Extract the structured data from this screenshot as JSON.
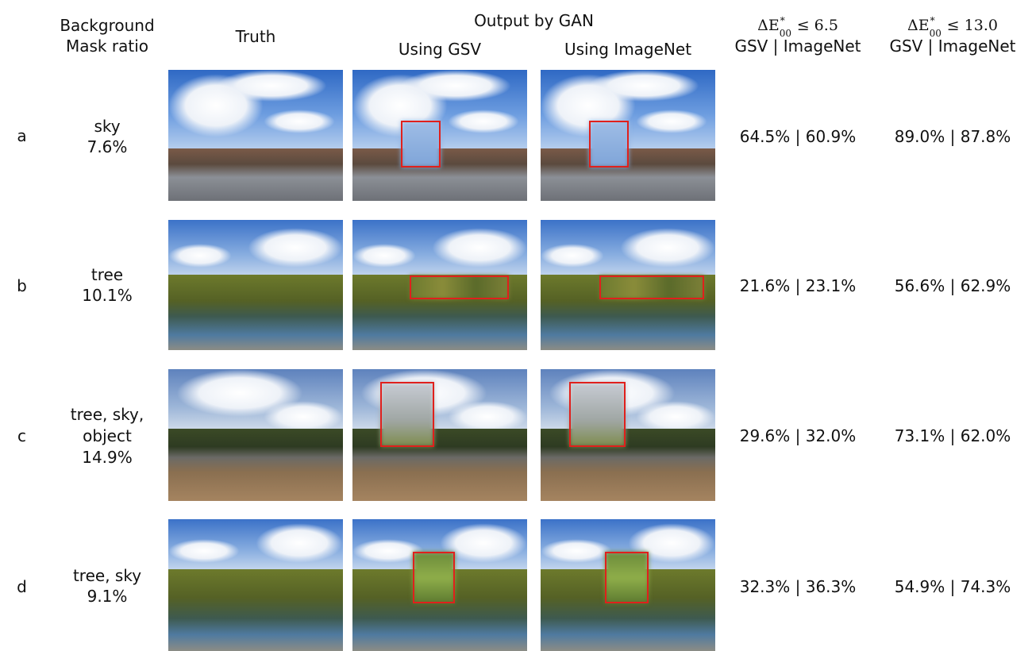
{
  "header": {
    "col_background": "Background",
    "col_mask_ratio": "Mask ratio",
    "col_truth": "Truth",
    "col_output": "Output by GAN",
    "col_using_gsv": "Using GSV",
    "col_using_imagenet": "Using ImageNet",
    "metric1": {
      "delta": "ΔE",
      "sup": "*",
      "sub": "00",
      "cond": " ≤ 6.5",
      "label": "GSV | ImageNet"
    },
    "metric2": {
      "delta": "ΔE",
      "sup": "*",
      "sub": "00",
      "cond": " ≤ 13.0",
      "label": "GSV | ImageNet"
    }
  },
  "rows": [
    {
      "id": "a",
      "background": "sky",
      "ratio": "7.6%",
      "m1": "64.5% | 60.9%",
      "m2": "89.0% | 87.8%"
    },
    {
      "id": "b",
      "background": "tree",
      "ratio": "10.1%",
      "m1": "21.6% | 23.1%",
      "m2": "56.6% | 62.9%"
    },
    {
      "id": "c",
      "background": "tree, sky,",
      "background2": "object",
      "ratio": "14.9%",
      "m1": "29.6% | 32.0%",
      "m2": "73.1% | 62.0%"
    },
    {
      "id": "d",
      "background": "tree, sky",
      "ratio": "9.1%",
      "m1": "32.3% | 36.3%",
      "m2": "54.9% | 74.3%"
    }
  ],
  "colors": {
    "mask_box": "#e0201c"
  }
}
